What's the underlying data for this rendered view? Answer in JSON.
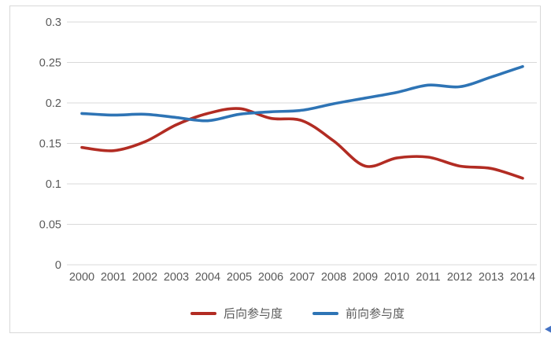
{
  "chart_data": {
    "type": "line",
    "title": "",
    "xlabel": "",
    "ylabel": "",
    "categories": [
      "2000",
      "2001",
      "2002",
      "2003",
      "2004",
      "2005",
      "2006",
      "2007",
      "2008",
      "2009",
      "2010",
      "2011",
      "2012",
      "2013",
      "2014"
    ],
    "series": [
      {
        "name": "后向参与度",
        "color": "#b22c23",
        "values": [
          0.145,
          0.141,
          0.152,
          0.173,
          0.187,
          0.193,
          0.181,
          0.178,
          0.153,
          0.122,
          0.132,
          0.133,
          0.122,
          0.119,
          0.107
        ]
      },
      {
        "name": "前向参与度",
        "color": "#2e74b5",
        "values": [
          0.187,
          0.185,
          0.186,
          0.182,
          0.178,
          0.186,
          0.189,
          0.191,
          0.199,
          0.206,
          0.213,
          0.222,
          0.22,
          0.232,
          0.245
        ]
      }
    ],
    "y_ticks": [
      "0.3",
      "0.25",
      "0.2",
      "0.15",
      "0.1",
      "0.05",
      "0"
    ],
    "ylim": [
      0,
      0.3
    ],
    "grid": true,
    "gridline_color": "#d9d9d9",
    "tick_label_color": "#595959",
    "legend_position": "bottom"
  },
  "decorations": {
    "corner_arrow_icon_color": "#4472c4"
  }
}
